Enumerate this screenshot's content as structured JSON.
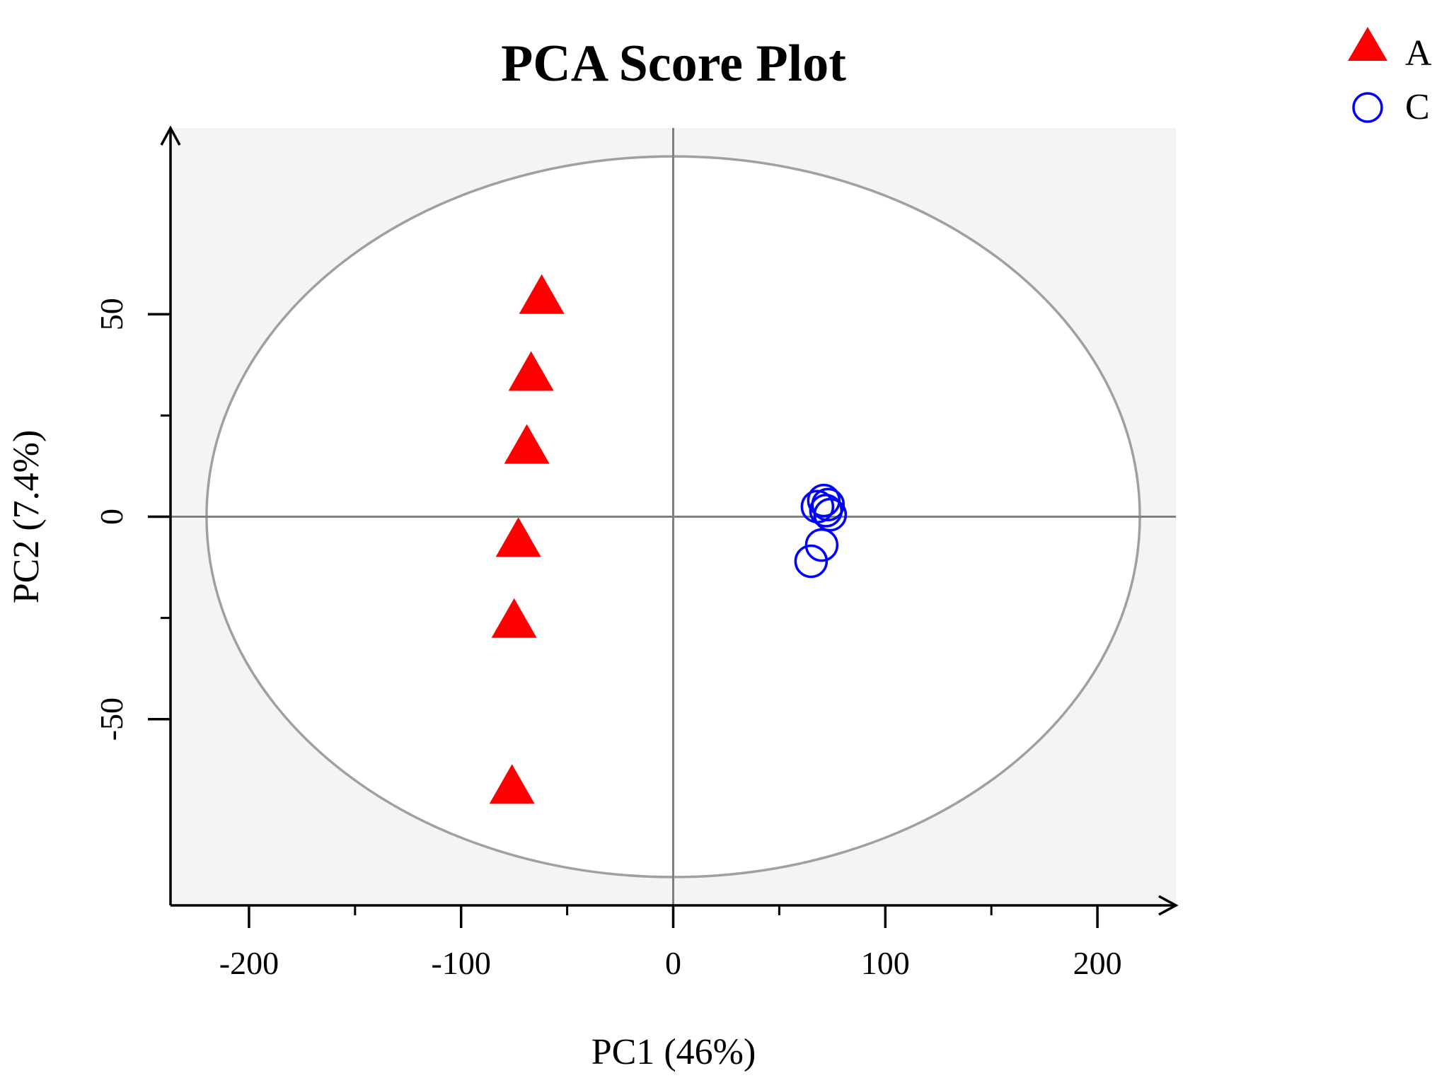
{
  "chart_data": {
    "type": "scatter",
    "title": "PCA Score Plot",
    "xlabel": "PC1 (46%)",
    "ylabel": "PC2 (7.4%)",
    "xlim": [
      -237,
      237
    ],
    "ylim": [
      -96,
      96
    ],
    "x_ticks": [
      -200,
      -100,
      0,
      100,
      200
    ],
    "x_tick_labels": [
      "-200",
      "-100",
      "0",
      "100",
      "200"
    ],
    "x_minor_ticks": [
      -150,
      -50,
      50,
      150
    ],
    "y_ticks": [
      -50,
      0,
      50
    ],
    "y_tick_labels": [
      "-50",
      "0",
      "50"
    ],
    "y_minor_ticks": [
      -25,
      25
    ],
    "ellipse": {
      "rx": 220,
      "ry": 89,
      "color": "#a0a0a0"
    },
    "plot_background": "#f4f4f4",
    "reference_lines": {
      "x": 0,
      "y": 0,
      "color": "#808080"
    },
    "legend_position": "top-right",
    "series": [
      {
        "name": "A",
        "marker": "triangle",
        "color": "#ff0000",
        "points": [
          {
            "x": -62,
            "y": 54
          },
          {
            "x": -67,
            "y": 35
          },
          {
            "x": -69,
            "y": 17
          },
          {
            "x": -73,
            "y": -6
          },
          {
            "x": -75,
            "y": -26
          },
          {
            "x": -76,
            "y": -67
          }
        ]
      },
      {
        "name": "C",
        "marker": "circle",
        "color": "#0000ff",
        "points": [
          {
            "x": 71,
            "y": 4
          },
          {
            "x": 68,
            "y": 2.5
          },
          {
            "x": 73,
            "y": 3
          },
          {
            "x": 74,
            "y": 0.5
          },
          {
            "x": 72,
            "y": 1.5
          },
          {
            "x": 70,
            "y": -7
          },
          {
            "x": 65,
            "y": -11
          }
        ]
      }
    ]
  }
}
